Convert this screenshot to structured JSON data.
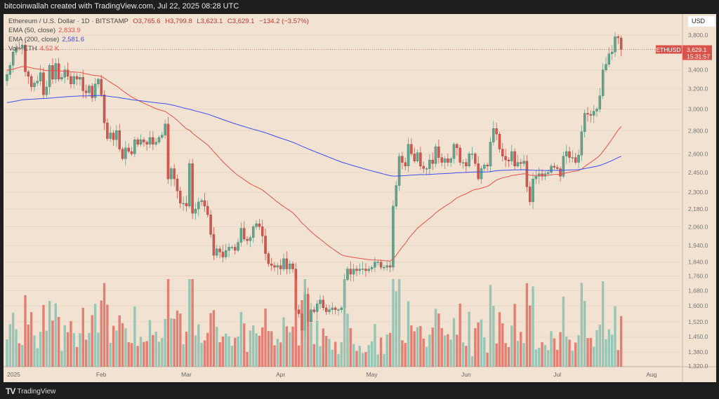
{
  "header": {
    "caption": "bitcoinwallah created with TradingView.com, Jul 22, 2025 08:28 UTC"
  },
  "legend": {
    "symbol": "Ethereum / U.S. Dollar · 1D · BITSTAMP",
    "open": "O3,765.6",
    "high": "H3,799.8",
    "low": "L3,623.1",
    "close": "C3,629.1",
    "change": "−134.2 (−3.57%)",
    "ema50_label": "EMA (50, close)",
    "ema50_value": "2,833.9",
    "ema200_label": "EMA (200, close)",
    "ema200_value": "2,581.6",
    "vol_label": "Vol · ETH",
    "vol_value": "4.52 K"
  },
  "price_axis": {
    "currency": "USD",
    "ticker": "ETHUSD",
    "last_price": "3,629.1",
    "countdown": "15:31:57"
  },
  "footer": {
    "brand": "TradingView"
  },
  "colors": {
    "up": "#7fbfb0",
    "down": "#e0675c",
    "ema50": "#e8534a",
    "ema200": "#3d4ef0",
    "background": "#f2e2d2"
  },
  "chart_data": {
    "type": "candlestick",
    "title": "Ethereum / U.S. Dollar · 1D · BITSTAMP",
    "scale": "log",
    "ylim": [
      1300,
      3900
    ],
    "yticks": [
      3800,
      3400,
      3200,
      3000,
      2800,
      2600,
      2450,
      2300,
      2180,
      2060,
      1940,
      1840,
      1760,
      1680,
      1600,
      1520,
      1450,
      1380,
      1320
    ],
    "ytick_labels": [
      "3,800.0",
      "3,400.0",
      "3,200.0",
      "3,000.0",
      "2,800.0",
      "2,600.0",
      "2,450.0",
      "2,300.0",
      "2,180.0",
      "2,060.0",
      "1,940.0",
      "1,840.0",
      "1,760.0",
      "1,680.0",
      "1,600.0",
      "1,520.0",
      "1,450.0",
      "1,380.0",
      "1,320.0"
    ],
    "xticks": [
      {
        "label": "2025",
        "day": 0
      },
      {
        "label": "Feb",
        "day": 31
      },
      {
        "label": "Mar",
        "day": 59
      },
      {
        "label": "Apr",
        "day": 90
      },
      {
        "label": "May",
        "day": 120
      },
      {
        "label": "Jun",
        "day": 151
      },
      {
        "label": "Jul",
        "day": 181
      },
      {
        "label": "Aug",
        "day": 212
      }
    ],
    "start_date": "2025-01-01",
    "closes": [
      3350,
      3450,
      3600,
      3650,
      3640,
      3680,
      3380,
      3330,
      3220,
      3260,
      3280,
      3370,
      3140,
      3220,
      3450,
      3300,
      3470,
      3300,
      3320,
      3400,
      3330,
      3250,
      3330,
      3300,
      3320,
      3180,
      3160,
      3230,
      3110,
      3250,
      3300,
      3140,
      2870,
      2730,
      2780,
      2720,
      2800,
      2640,
      2560,
      2650,
      2620,
      2600,
      2720,
      2680,
      2720,
      2700,
      2680,
      2740,
      2680,
      2700,
      2740,
      2760,
      2860,
      2400,
      2480,
      2400,
      2310,
      2220,
      2220,
      2200,
      2520,
      2150,
      2180,
      2230,
      2240,
      2200,
      2140,
      2010,
      1880,
      1920,
      1900,
      1870,
      1910,
      1930,
      1930,
      1910,
      1960,
      2050,
      1980,
      1970,
      1990,
      2060,
      2080,
      2060,
      2000,
      1890,
      1830,
      1820,
      1810,
      1820,
      1800,
      1860,
      1800,
      1830,
      1800,
      1580,
      1560,
      1480,
      1660,
      1520,
      1580,
      1570,
      1610,
      1630,
      1590,
      1570,
      1580,
      1590,
      1580,
      1580,
      1590,
      1740,
      1800,
      1770,
      1800,
      1790,
      1800,
      1800,
      1790,
      1800,
      1810,
      1840,
      1840,
      1810,
      1810,
      1820,
      1810,
      2200,
      2350,
      2580,
      2530,
      2500,
      2680,
      2600,
      2540,
      2610,
      2500,
      2480,
      2480,
      2550,
      2520,
      2660,
      2570,
      2530,
      2560,
      2530,
      2560,
      2680,
      2650,
      2530,
      2530,
      2500,
      2600,
      2600,
      2520,
      2400,
      2480,
      2510,
      2500,
      2700,
      2820,
      2770,
      2640,
      2580,
      2550,
      2540,
      2620,
      2500,
      2530,
      2520,
      2540,
      2340,
      2230,
      2400,
      2420,
      2440,
      2420,
      2440,
      2450,
      2500,
      2490,
      2480,
      2420,
      2580,
      2620,
      2570,
      2570,
      2530,
      2590,
      2790,
      2960,
      2950,
      2940,
      2980,
      3000,
      3130,
      3400,
      3460,
      3580,
      3600,
      3780,
      3765.6,
      3629.1
    ],
    "series": [
      {
        "name": "EMA (50, close)",
        "last": 2833.9
      },
      {
        "name": "EMA (200, close)",
        "last": 2581.6
      }
    ]
  }
}
